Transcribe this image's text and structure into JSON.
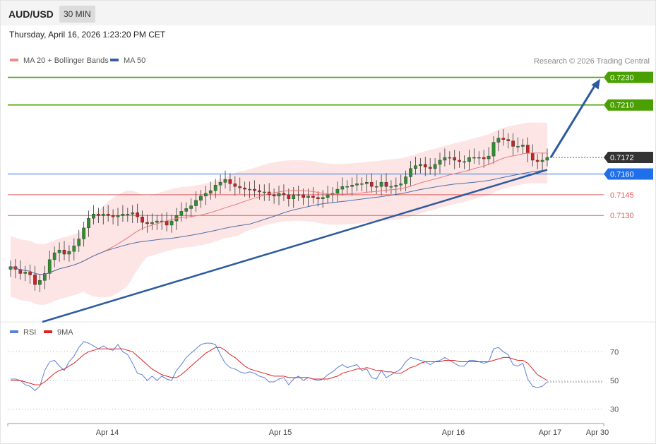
{
  "header": {
    "symbol": "AUD/USD",
    "timeframe": "30 MIN",
    "datetime": "Thursday, April 16, 2026 1:23:20 PM CET"
  },
  "legend": {
    "ma20_label": "MA 20 + Bollinger Bands",
    "ma50_label": "MA 50",
    "credit": "Research © 2026 Trading Central",
    "rsi_label": "RSI",
    "rsi_ma_label": "9MA"
  },
  "colors": {
    "up_candle": "#2f8f2f",
    "down_candle": "#cc2222",
    "bollinger_fill": "#fde0e0",
    "ma20": "#e87979",
    "ma50": "#4b6ea8",
    "resistance": "#4aa000",
    "pivot": "#1f6feb",
    "support": "#e06060",
    "last_price": "#333333",
    "trendline": "#2c5aa0",
    "rsi": "#5b80d8",
    "rsi_ma": "#dd2222"
  },
  "chart_data": [
    {
      "type": "candlestick",
      "title": "AUD/USD 30 MIN",
      "x_ticks": [
        "Apr 14",
        "Apr 15",
        "Apr 16",
        "Apr 17",
        "Apr 30"
      ],
      "ylim": [
        0.7055,
        0.724
      ],
      "last_price": 0.7172,
      "levels": [
        {
          "value": 0.723,
          "label": "0.7230",
          "kind": "resistance"
        },
        {
          "value": 0.721,
          "label": "0.7210",
          "kind": "resistance"
        },
        {
          "value": 0.716,
          "label": "0.7160",
          "kind": "pivot"
        },
        {
          "value": 0.7145,
          "label": "0.7145",
          "kind": "support"
        },
        {
          "value": 0.713,
          "label": "0.7130",
          "kind": "support"
        }
      ],
      "closes": [
        0.7093,
        0.7091,
        0.7088,
        0.7089,
        0.7087,
        0.708,
        0.7083,
        0.7088,
        0.7098,
        0.7103,
        0.7105,
        0.7102,
        0.7104,
        0.7108,
        0.7113,
        0.7121,
        0.7128,
        0.7131,
        0.713,
        0.7131,
        0.713,
        0.7129,
        0.713,
        0.7131,
        0.7131,
        0.7132,
        0.7129,
        0.7125,
        0.7124,
        0.7125,
        0.7126,
        0.7126,
        0.7123,
        0.7126,
        0.713,
        0.7133,
        0.7135,
        0.7137,
        0.7141,
        0.7144,
        0.7146,
        0.7148,
        0.7152,
        0.7154,
        0.7156,
        0.7153,
        0.7151,
        0.715,
        0.7149,
        0.7149,
        0.7148,
        0.7147,
        0.7147,
        0.7145,
        0.7144,
        0.7146,
        0.7145,
        0.7142,
        0.7145,
        0.7145,
        0.7143,
        0.7144,
        0.7143,
        0.7142,
        0.7143,
        0.7145,
        0.7146,
        0.7149,
        0.7151,
        0.7151,
        0.7152,
        0.7153,
        0.7153,
        0.7154,
        0.7151,
        0.7151,
        0.7154,
        0.7151,
        0.7151,
        0.7152,
        0.7153,
        0.7158,
        0.7164,
        0.7166,
        0.7167,
        0.7165,
        0.7164,
        0.7167,
        0.717,
        0.7172,
        0.7172,
        0.717,
        0.7169,
        0.7169,
        0.7172,
        0.7172,
        0.7172,
        0.7171,
        0.7173,
        0.7183,
        0.7186,
        0.7185,
        0.7184,
        0.718,
        0.718,
        0.7181,
        0.7175,
        0.717,
        0.7169,
        0.717,
        0.7172
      ],
      "rsi": {
        "ylim": [
          22,
          78
        ],
        "levels": [
          70,
          50,
          30
        ],
        "values": [
          51,
          51,
          50,
          47,
          46,
          43,
          46,
          57,
          63,
          64,
          60,
          57,
          63,
          67,
          73,
          77,
          76,
          74,
          72,
          74,
          72,
          71,
          75,
          70,
          68,
          62,
          55,
          54,
          50,
          53,
          50,
          53,
          51,
          50,
          57,
          61,
          66,
          69,
          72,
          75,
          76,
          76,
          75,
          68,
          62,
          59,
          58,
          56,
          55,
          56,
          55,
          53,
          52,
          49,
          49,
          51,
          52,
          47,
          51,
          53,
          50,
          52,
          51,
          50,
          51,
          54,
          56,
          59,
          61,
          59,
          60,
          61,
          57,
          58,
          52,
          51,
          57,
          52,
          54,
          56,
          58,
          63,
          66,
          65,
          64,
          63,
          61,
          63,
          64,
          66,
          64,
          62,
          60,
          60,
          64,
          64,
          63,
          62,
          63,
          72,
          73,
          70,
          68,
          61,
          60,
          62,
          51,
          46,
          45,
          46,
          49
        ],
        "ma": [
          50,
          50,
          50,
          49,
          48,
          47,
          47,
          49,
          52,
          55,
          57,
          58,
          60,
          62,
          65,
          68,
          70,
          71,
          72,
          72,
          72,
          72,
          72,
          72,
          71,
          70,
          67,
          64,
          61,
          58,
          56,
          54,
          53,
          52,
          52,
          54,
          57,
          60,
          63,
          66,
          69,
          71,
          73,
          73,
          71,
          68,
          66,
          63,
          60,
          58,
          57,
          56,
          55,
          54,
          53,
          53,
          53,
          52,
          52,
          52,
          52,
          52,
          51,
          51,
          51,
          51,
          52,
          53,
          55,
          56,
          57,
          58,
          58,
          59,
          58,
          57,
          57,
          56,
          56,
          55,
          55,
          57,
          59,
          60,
          62,
          63,
          63,
          63,
          63,
          64,
          64,
          64,
          63,
          63,
          63,
          63,
          63,
          63,
          63,
          64,
          65,
          66,
          66,
          65,
          64,
          64,
          62,
          58,
          54,
          52,
          50
        ]
      }
    }
  ]
}
